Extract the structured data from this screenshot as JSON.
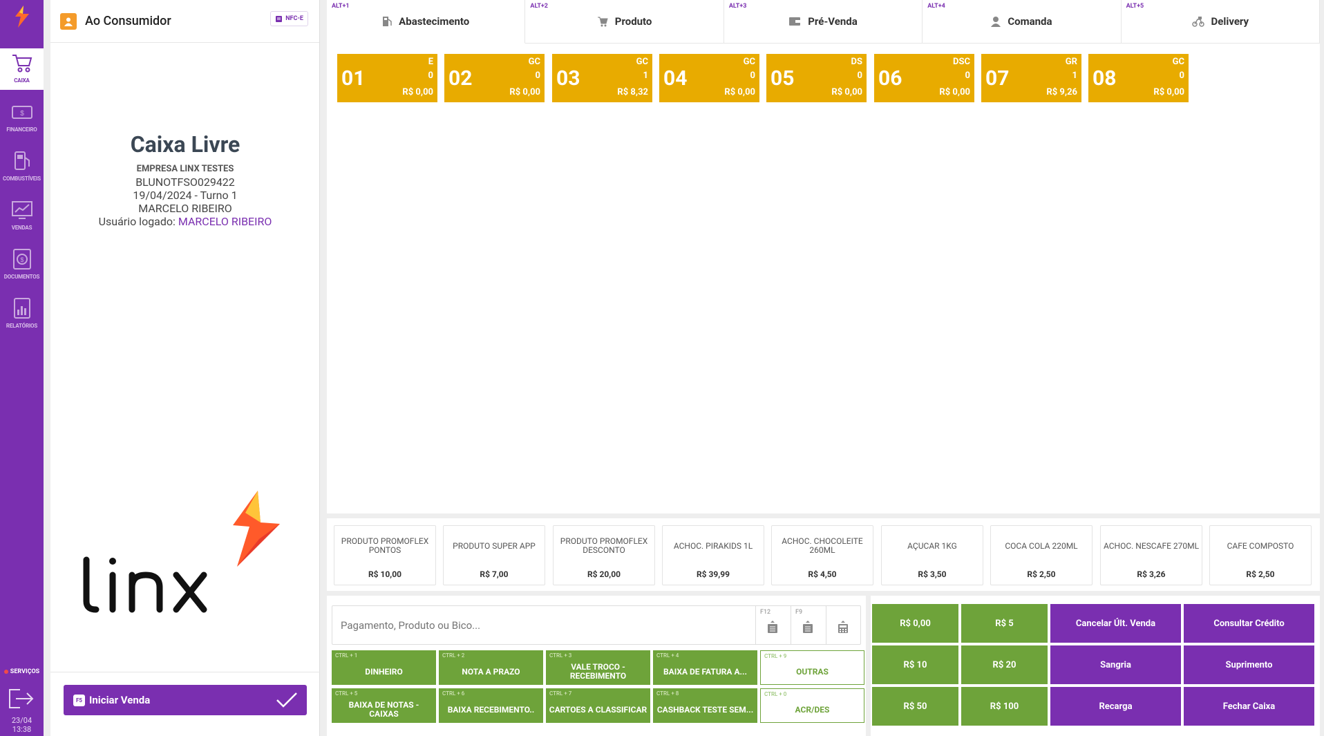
{
  "sidebar": {
    "items": [
      {
        "label": "CAIXA",
        "icon": "cart-icon",
        "active": true
      },
      {
        "label": "FINANCEIRO",
        "icon": "cash-icon",
        "active": false
      },
      {
        "label": "COMBUSTÍVEIS",
        "icon": "fuel-pump-icon",
        "active": false
      },
      {
        "label": "VENDAS",
        "icon": "chart-line-icon",
        "active": false
      },
      {
        "label": "DOCUMENTOS",
        "icon": "document-dollar-icon",
        "active": false
      },
      {
        "label": "RELATÓRIOS",
        "icon": "report-icon",
        "active": false
      }
    ],
    "services_label": "SERVIÇOS",
    "date": "23/04",
    "time": "13:38"
  },
  "left_panel": {
    "customer": "Ao Consumidor",
    "badge": "NFC-E",
    "title": "Caixa Livre",
    "company": "EMPRESA LINX TESTES",
    "terminal": "BLUNOTFSO029422",
    "date_shift": "19/04/2024 - Turno 1",
    "operator": "MARCELO RIBEIRO",
    "logged_label": "Usuário logado:",
    "logged_user": "MARCELO RIBEIRO",
    "start_key": "F5",
    "start_label": "Iniciar Venda"
  },
  "tabs": [
    {
      "shortcut": "ALT+1",
      "label": "Abastecimento",
      "icon": "fuel-icon",
      "active": true
    },
    {
      "shortcut": "ALT+2",
      "label": "Produto",
      "icon": "cart-icon",
      "active": false
    },
    {
      "shortcut": "ALT+3",
      "label": "Pré-Venda",
      "icon": "wallet-icon",
      "active": false
    },
    {
      "shortcut": "ALT+4",
      "label": "Comanda",
      "icon": "user-icon",
      "active": false
    },
    {
      "shortcut": "ALT+5",
      "label": "Delivery",
      "icon": "delivery-icon",
      "active": false
    }
  ],
  "pumps": [
    {
      "num": "01",
      "type": "E",
      "count": "0",
      "value": "R$ 0,00"
    },
    {
      "num": "02",
      "type": "GC",
      "count": "0",
      "value": "R$ 0,00"
    },
    {
      "num": "03",
      "type": "GC",
      "count": "1",
      "value": "R$ 8,32"
    },
    {
      "num": "04",
      "type": "GC",
      "count": "0",
      "value": "R$ 0,00"
    },
    {
      "num": "05",
      "type": "DS",
      "count": "0",
      "value": "R$ 0,00"
    },
    {
      "num": "06",
      "type": "DSC",
      "count": "0",
      "value": "R$ 0,00"
    },
    {
      "num": "07",
      "type": "GR",
      "count": "1",
      "value": "R$ 9,26"
    },
    {
      "num": "08",
      "type": "GC",
      "count": "0",
      "value": "R$ 0,00"
    }
  ],
  "products": [
    {
      "name": "PRODUTO PROMOFLEX PONTOS",
      "price": "R$ 10,00"
    },
    {
      "name": "PRODUTO SUPER APP",
      "price": "R$ 7,00"
    },
    {
      "name": "PRODUTO PROMOFLEX DESCONTO",
      "price": "R$ 20,00"
    },
    {
      "name": "ACHOC. PIRAKIDS 1L",
      "price": "R$ 39,99"
    },
    {
      "name": "ACHOC. CHOCOLEITE 260ML",
      "price": "R$ 4,50"
    },
    {
      "name": "AÇUCAR 1KG",
      "price": "R$ 3,50"
    },
    {
      "name": "COCA COLA 220ML",
      "price": "R$ 2,50"
    },
    {
      "name": "ACHOC. NESCAFE 270ML",
      "price": "R$ 3,26"
    },
    {
      "name": "CAFE COMPOSTO",
      "price": "R$ 2,50"
    }
  ],
  "search": {
    "placeholder": "Pagamento, Produto ou Bico...",
    "buttons": [
      {
        "key": "F12",
        "icon": "clipboard-up-icon"
      },
      {
        "key": "F9",
        "icon": "clipboard-up-icon"
      },
      {
        "key": "",
        "icon": "calculator-icon"
      }
    ]
  },
  "payments": [
    {
      "key": "CTRL + 1",
      "label": "DINHEIRO",
      "style": "solid"
    },
    {
      "key": "CTRL + 2",
      "label": "NOTA A PRAZO",
      "style": "solid"
    },
    {
      "key": "CTRL + 3",
      "label": "VALE TROCO - RECEBIMENTO",
      "style": "solid"
    },
    {
      "key": "CTRL + 4",
      "label": "BAIXA DE FATURA A...",
      "style": "solid"
    },
    {
      "key": "CTRL + 9",
      "label": "OUTRAS",
      "style": "outline"
    },
    {
      "key": "CTRL + 5",
      "label": "BAIXA DE NOTAS - CAIXAS",
      "style": "solid"
    },
    {
      "key": "CTRL + 6",
      "label": "BAIXA RECEBIMENTO..",
      "style": "solid"
    },
    {
      "key": "CTRL + 7",
      "label": "CARTOES A CLASSIFICAR",
      "style": "solid"
    },
    {
      "key": "CTRL + 8",
      "label": "CASHBACK TESTE SEM...",
      "style": "solid"
    },
    {
      "key": "CTRL + 0",
      "label": "ACR/DES",
      "style": "outline"
    }
  ],
  "actions": [
    {
      "label": "R$ 0,00",
      "color": "green"
    },
    {
      "label": "R$ 5",
      "color": "green"
    },
    {
      "label": "Cancelar Últ. Venda",
      "color": "purple"
    },
    {
      "label": "Consultar Crédito",
      "color": "purple"
    },
    {
      "label": "R$ 10",
      "color": "green"
    },
    {
      "label": "R$ 20",
      "color": "green"
    },
    {
      "label": "Sangria",
      "color": "purple"
    },
    {
      "label": "Suprimento",
      "color": "purple"
    },
    {
      "label": "R$ 50",
      "color": "green"
    },
    {
      "label": "R$ 100",
      "color": "green"
    },
    {
      "label": "Recarga",
      "color": "purple"
    },
    {
      "label": "Fechar Caixa",
      "color": "purple"
    }
  ],
  "colors": {
    "brand_purple": "#7a2fb0",
    "pump_yellow": "#e8ab00",
    "pay_green": "#6ea33a",
    "customer_orange": "#f49b2a"
  }
}
